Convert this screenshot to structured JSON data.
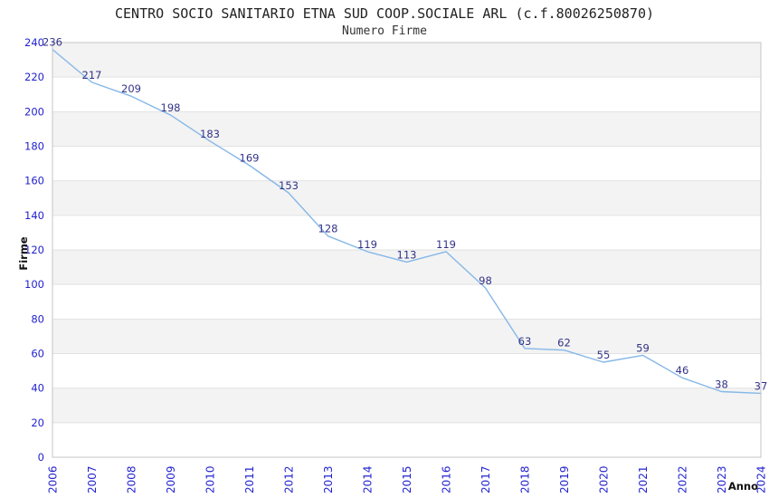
{
  "header": {
    "title": "CENTRO SOCIO SANITARIO ETNA SUD COOP.SOCIALE ARL (c.f.80026250870)",
    "subtitle": "Numero Firme"
  },
  "chart_data": {
    "type": "line",
    "title": "CENTRO SOCIO SANITARIO ETNA SUD COOP.SOCIALE ARL (c.f.80026250870)",
    "subtitle": "Numero Firme",
    "xlabel": "Anno",
    "ylabel": "Firme",
    "categories": [
      2006,
      2007,
      2008,
      2009,
      2010,
      2011,
      2012,
      2013,
      2014,
      2015,
      2016,
      2017,
      2018,
      2019,
      2020,
      2021,
      2022,
      2023,
      2024
    ],
    "series": [
      {
        "name": "Numero Firme",
        "values": [
          236,
          217,
          209,
          198,
          183,
          169,
          153,
          128,
          119,
          113,
          119,
          98,
          63,
          62,
          55,
          59,
          46,
          38,
          37
        ]
      }
    ],
    "ylim": [
      0,
      240
    ],
    "ytick_step": 20,
    "grid": "horizontal-bands",
    "legend": "none",
    "point_labels": true,
    "colors": {
      "line": "#85b7e8",
      "tick_label": "#2323cf",
      "point_label": "#333388",
      "band": "#f3f3f3",
      "gridline": "#e2e2e2",
      "plot_border": "#c6c6c6",
      "title": "#222222"
    }
  }
}
